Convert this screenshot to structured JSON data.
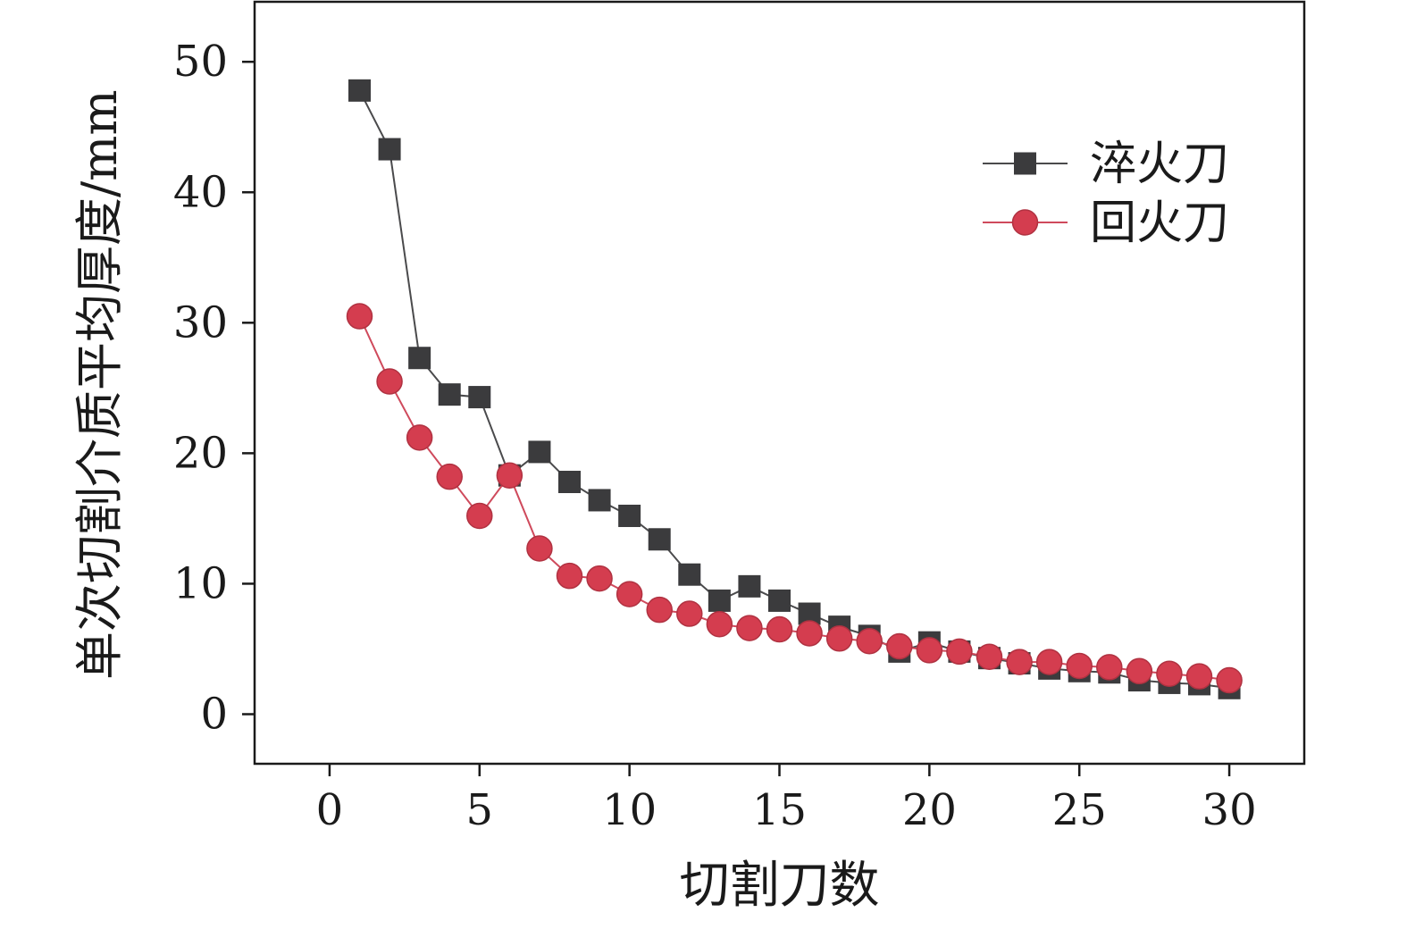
{
  "chart_data": {
    "type": "line",
    "title": "",
    "xlabel": "切割刀数",
    "ylabel": "单次切割介质平均厚度/mm",
    "xlim": [
      -2.5,
      32.5
    ],
    "ylim": [
      -3.8,
      54.6
    ],
    "xticks": [
      0,
      5,
      10,
      15,
      20,
      25,
      30
    ],
    "yticks": [
      0,
      10,
      20,
      30,
      40,
      50
    ],
    "grid": false,
    "legend_position": "upper right",
    "x": [
      1,
      2,
      3,
      4,
      5,
      6,
      7,
      8,
      9,
      10,
      11,
      12,
      13,
      14,
      15,
      16,
      17,
      18,
      19,
      20,
      21,
      22,
      23,
      24,
      25,
      26,
      27,
      28,
      29,
      30
    ],
    "series": [
      {
        "name": "淬火刀",
        "marker": "square",
        "color": "#3b3b3d",
        "line_color": "#4a4a4c",
        "values": [
          47.8,
          43.3,
          27.3,
          24.5,
          24.3,
          18.3,
          20.1,
          17.8,
          16.4,
          15.2,
          13.4,
          10.7,
          8.7,
          9.8,
          8.7,
          7.7,
          6.7,
          6.0,
          4.8,
          5.5,
          4.8,
          4.3,
          3.9,
          3.5,
          3.3,
          3.2,
          2.6,
          2.4,
          2.3,
          2.0
        ]
      },
      {
        "name": "回火刀",
        "marker": "circle",
        "color": "#d43d4f",
        "line_color": "#cf4a5c",
        "values": [
          30.5,
          25.5,
          21.2,
          18.2,
          15.2,
          18.3,
          12.7,
          10.6,
          10.4,
          9.2,
          8.0,
          7.7,
          6.9,
          6.6,
          6.5,
          6.2,
          5.8,
          5.6,
          5.2,
          4.9,
          4.8,
          4.4,
          4.0,
          4.0,
          3.7,
          3.6,
          3.3,
          3.1,
          2.9,
          2.6
        ]
      }
    ]
  }
}
